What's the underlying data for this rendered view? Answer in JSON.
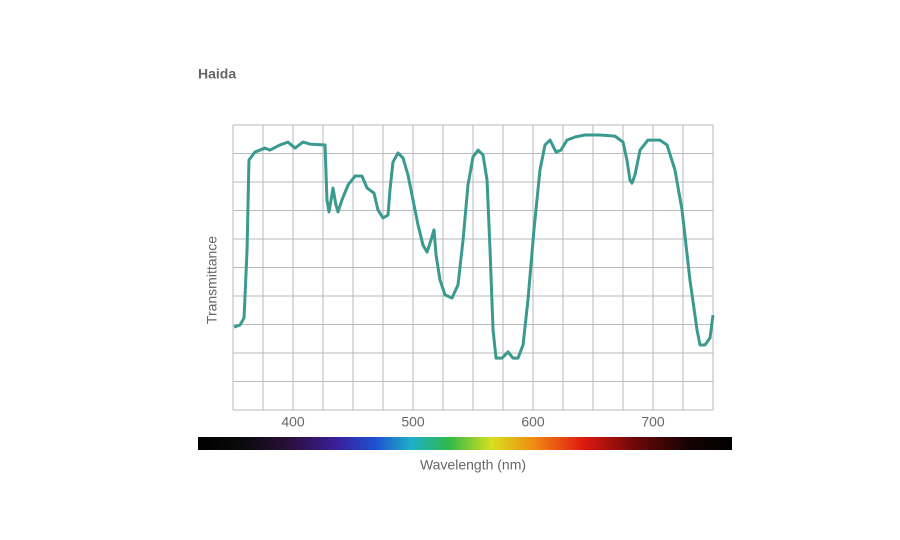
{
  "chart_data": {
    "type": "line",
    "title": "Haida",
    "xlabel": "Wavelength (nm)",
    "ylabel": "Transmittance",
    "color": "#3a9a8f",
    "title_color": "#e00000",
    "xlim": [
      350,
      750
    ],
    "ylim": [
      0,
      100
    ],
    "xticks": [
      400,
      500,
      600,
      700
    ],
    "xgrid": [
      350,
      375,
      400,
      425,
      450,
      475,
      500,
      525,
      550,
      575,
      600,
      625,
      650,
      675,
      700,
      725,
      750
    ],
    "ygrid": [
      0,
      10,
      20,
      30,
      40,
      50,
      60,
      70,
      80,
      90,
      100
    ],
    "x": [
      350.8,
      355.8,
      359.2,
      361.7,
      363.3,
      368.3,
      376.7,
      380.8,
      389.2,
      395.8,
      401.7,
      408.3,
      414.2,
      426.7,
      428.3,
      430.0,
      431.7,
      433.3,
      435.8,
      437.5,
      440.8,
      445.8,
      451.7,
      457.5,
      461.7,
      467.5,
      470.8,
      475.0,
      479.2,
      480.8,
      483.3,
      487.5,
      491.7,
      495.8,
      500.0,
      504.2,
      508.3,
      511.7,
      515.0,
      517.5,
      519.2,
      522.5,
      526.7,
      532.5,
      537.5,
      541.7,
      545.8,
      550.0,
      554.2,
      558.3,
      561.7,
      564.2,
      566.7,
      569.2,
      574.2,
      579.2,
      583.3,
      587.5,
      591.7,
      595.8,
      600.8,
      605.8,
      610.0,
      614.2,
      619.2,
      623.3,
      628.3,
      635.0,
      643.3,
      655.8,
      668.3,
      675.0,
      678.3,
      680.8,
      682.5,
      685.0,
      689.2,
      695.8,
      705.8,
      711.7,
      718.3,
      724.2,
      730.8,
      736.7,
      739.2,
      743.3,
      747.5,
      750.0
    ],
    "values": [
      29.1,
      29.8,
      32.3,
      56.1,
      87.7,
      90.5,
      91.9,
      91.2,
      93.0,
      94.0,
      91.9,
      94.0,
      93.3,
      93.0,
      73.7,
      69.5,
      73.7,
      77.9,
      71.9,
      69.5,
      73.7,
      78.9,
      82.1,
      82.1,
      77.9,
      76.1,
      70.2,
      67.4,
      68.4,
      77.2,
      87.0,
      90.2,
      88.4,
      82.5,
      73.7,
      64.9,
      57.9,
      55.4,
      59.6,
      63.2,
      54.4,
      45.6,
      40.4,
      39.3,
      43.9,
      59.6,
      78.9,
      88.8,
      91.2,
      89.5,
      80.7,
      56.1,
      28.1,
      18.2,
      18.2,
      20.4,
      18.2,
      18.2,
      22.8,
      38.6,
      63.2,
      84.2,
      93.0,
      94.7,
      90.5,
      91.2,
      94.7,
      95.8,
      96.5,
      96.5,
      96.1,
      94.0,
      87.7,
      80.7,
      79.6,
      82.5,
      91.2,
      94.7,
      94.7,
      93.0,
      84.2,
      70.2,
      45.6,
      28.1,
      22.8,
      22.8,
      25.3,
      33.3
    ]
  }
}
